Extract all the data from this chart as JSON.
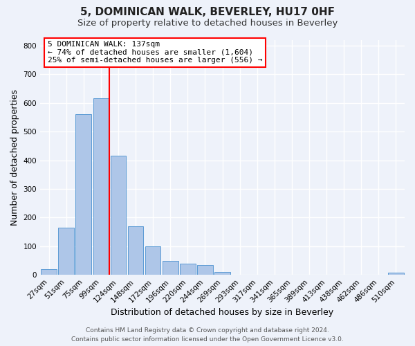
{
  "title": "5, DOMINICAN WALK, BEVERLEY, HU17 0HF",
  "subtitle": "Size of property relative to detached houses in Beverley",
  "xlabel": "Distribution of detached houses by size in Beverley",
  "ylabel": "Number of detached properties",
  "bin_labels": [
    "27sqm",
    "51sqm",
    "75sqm",
    "99sqm",
    "124sqm",
    "148sqm",
    "172sqm",
    "196sqm",
    "220sqm",
    "244sqm",
    "269sqm",
    "293sqm",
    "317sqm",
    "341sqm",
    "365sqm",
    "389sqm",
    "413sqm",
    "438sqm",
    "462sqm",
    "486sqm",
    "510sqm"
  ],
  "bar_heights": [
    20,
    165,
    560,
    615,
    415,
    170,
    100,
    50,
    40,
    35,
    10,
    0,
    0,
    0,
    0,
    0,
    0,
    0,
    0,
    0,
    8
  ],
  "bar_color": "#aec6e8",
  "bar_edge_color": "#5b9bd5",
  "vline_x": 3.5,
  "vline_color": "red",
  "annotation_title": "5 DOMINICAN WALK: 137sqm",
  "annotation_line1": "← 74% of detached houses are smaller (1,604)",
  "annotation_line2": "25% of semi-detached houses are larger (556) →",
  "annotation_box_color": "white",
  "annotation_box_edge_color": "red",
  "ylim": [
    0,
    820
  ],
  "yticks": [
    0,
    100,
    200,
    300,
    400,
    500,
    600,
    700,
    800
  ],
  "footer_line1": "Contains HM Land Registry data © Crown copyright and database right 2024.",
  "footer_line2": "Contains public sector information licensed under the Open Government Licence v3.0.",
  "background_color": "#eef2fa",
  "grid_color": "white",
  "title_fontsize": 11,
  "subtitle_fontsize": 9.5,
  "axis_label_fontsize": 9,
  "tick_fontsize": 7.5,
  "footer_fontsize": 6.5,
  "annot_fontsize": 8
}
